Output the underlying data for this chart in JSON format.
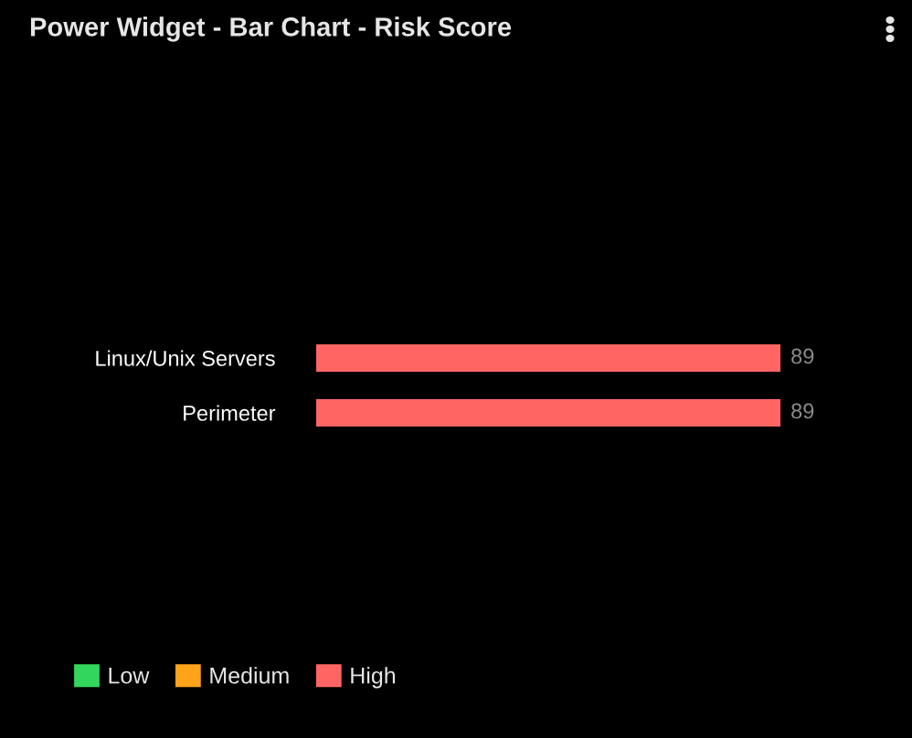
{
  "chart_data": {
    "type": "bar",
    "title": "Power Widget - Bar Chart - Risk Score",
    "orientation": "horizontal",
    "categories": [
      "Linux/Unix Servers",
      "Perimeter"
    ],
    "series": [
      {
        "name": "Low",
        "color": "#33d65c",
        "values": [
          null,
          null
        ]
      },
      {
        "name": "Medium",
        "color": "#ffa31a",
        "values": [
          null,
          null
        ]
      },
      {
        "name": "High",
        "color": "#ff6663",
        "values": [
          89,
          89
        ]
      }
    ],
    "data_labels": true,
    "legend": "bottom left",
    "grid": false
  }
}
